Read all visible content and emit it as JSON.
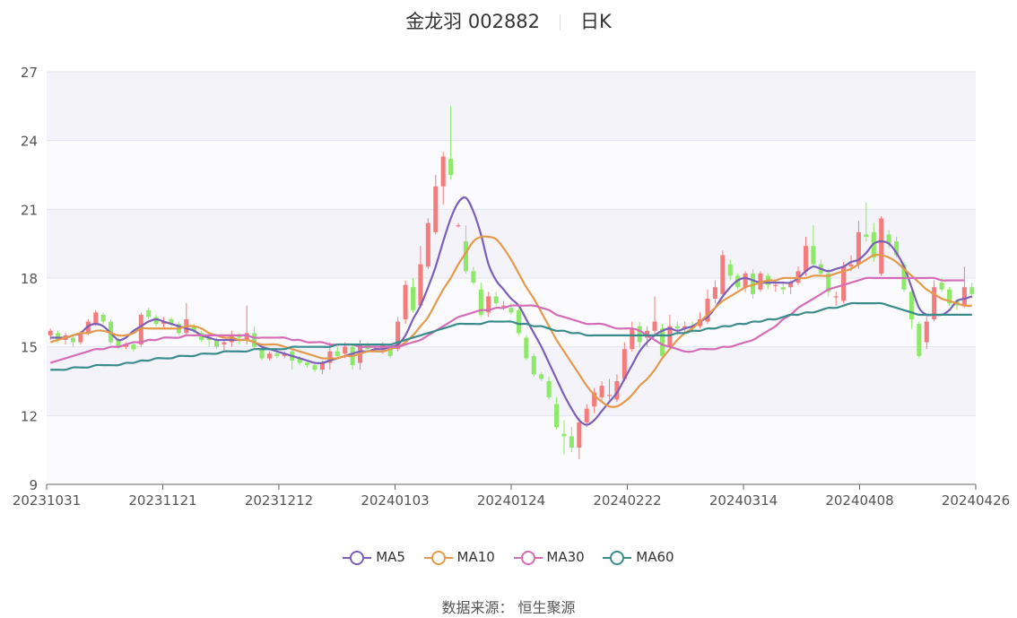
{
  "title": {
    "stock": "金龙羽 002882",
    "period": "日K"
  },
  "source": "数据来源： 恒生聚源",
  "colors": {
    "up": "#f47c7c",
    "down": "#8ee86a",
    "ma5": "#7b5fb8",
    "ma10": "#e49a4a",
    "ma30": "#d46cb8",
    "ma60": "#3a8c8c"
  },
  "chart_data": {
    "type": "candlestick",
    "ylim": [
      9,
      27
    ],
    "yticks": [
      9,
      12,
      15,
      18,
      21,
      24,
      27
    ],
    "xticks": [
      "20231031",
      "20231121",
      "20231212",
      "20240103",
      "20240124",
      "20240222",
      "20240314",
      "20240408",
      "20240426"
    ],
    "legend_position": "bottom",
    "candles": [
      [
        15.5,
        15.7,
        15.3,
        15.8
      ],
      [
        15.6,
        15.3,
        15.2,
        15.7
      ],
      [
        15.3,
        15.5,
        15.1,
        15.6
      ],
      [
        15.4,
        15.2,
        15.0,
        15.5
      ],
      [
        15.2,
        15.6,
        15.1,
        15.7
      ],
      [
        15.6,
        16.1,
        15.5,
        16.2
      ],
      [
        16.0,
        16.5,
        15.9,
        16.6
      ],
      [
        16.4,
        16.1,
        16.0,
        16.5
      ],
      [
        16.1,
        15.2,
        15.1,
        16.2
      ],
      [
        15.3,
        15.0,
        14.9,
        15.4
      ],
      [
        15.0,
        15.1,
        14.9,
        15.2
      ],
      [
        15.1,
        14.9,
        14.8,
        15.2
      ],
      [
        15.1,
        16.4,
        15.0,
        16.5
      ],
      [
        16.6,
        16.3,
        16.2,
        16.7
      ],
      [
        16.3,
        16.0,
        15.9,
        16.4
      ],
      [
        16.0,
        16.1,
        15.8,
        16.3
      ],
      [
        16.2,
        16.0,
        15.9,
        16.3
      ],
      [
        16.0,
        15.6,
        15.5,
        16.1
      ],
      [
        15.6,
        16.2,
        15.5,
        16.9
      ],
      [
        15.9,
        15.7,
        15.6,
        16.0
      ],
      [
        15.6,
        15.3,
        15.2,
        15.7
      ],
      [
        15.4,
        15.3,
        15.0,
        15.5
      ],
      [
        15.3,
        15.0,
        14.9,
        15.4
      ],
      [
        15.1,
        15.2,
        14.8,
        15.3
      ],
      [
        15.2,
        15.5,
        15.0,
        15.7
      ],
      [
        15.5,
        15.4,
        15.1,
        15.6
      ],
      [
        15.3,
        15.6,
        15.1,
        16.8
      ],
      [
        15.6,
        15.0,
        14.9,
        15.9
      ],
      [
        14.9,
        14.5,
        14.4,
        15.0
      ],
      [
        14.5,
        14.7,
        14.4,
        14.8
      ],
      [
        14.7,
        14.6,
        14.5,
        14.8
      ],
      [
        14.6,
        14.7,
        14.5,
        14.8
      ],
      [
        14.8,
        14.4,
        14.0,
        14.9
      ],
      [
        14.5,
        14.3,
        14.2,
        14.6
      ],
      [
        14.3,
        14.2,
        14.1,
        14.4
      ],
      [
        14.2,
        14.0,
        13.9,
        14.3
      ],
      [
        14.0,
        14.3,
        13.8,
        14.4
      ],
      [
        14.3,
        14.8,
        14.0,
        15.2
      ],
      [
        14.8,
        14.6,
        14.5,
        15.0
      ],
      [
        14.7,
        15.0,
        14.5,
        15.2
      ],
      [
        15.0,
        14.2,
        14.0,
        15.1
      ],
      [
        14.3,
        15.1,
        14.0,
        15.3
      ],
      [
        15.1,
        14.9,
        14.8,
        15.2
      ],
      [
        14.9,
        14.9,
        14.8,
        15.0
      ],
      [
        14.9,
        15.1,
        14.7,
        15.2
      ],
      [
        14.9,
        14.6,
        14.5,
        15.0
      ],
      [
        14.9,
        16.1,
        14.8,
        16.3
      ],
      [
        16.2,
        17.7,
        16.0,
        17.9
      ],
      [
        17.6,
        16.6,
        16.5,
        18.0
      ],
      [
        16.8,
        18.6,
        16.7,
        19.4
      ],
      [
        18.5,
        20.4,
        18.4,
        20.6
      ],
      [
        20.0,
        22.0,
        19.9,
        22.5
      ],
      [
        22.0,
        23.3,
        21.2,
        23.5
      ],
      [
        23.2,
        22.5,
        22.3,
        25.5
      ],
      [
        20.3,
        20.3,
        20.2,
        20.4
      ],
      [
        19.6,
        18.3,
        18.2,
        20.3
      ],
      [
        18.3,
        17.8,
        17.7,
        18.5
      ],
      [
        17.5,
        16.4,
        16.3,
        17.8
      ],
      [
        16.5,
        17.2,
        16.3,
        17.4
      ],
      [
        17.2,
        16.9,
        16.8,
        17.4
      ],
      [
        16.8,
        16.8,
        16.6,
        17.0
      ],
      [
        16.7,
        16.5,
        16.4,
        16.9
      ],
      [
        16.6,
        15.6,
        15.5,
        16.7
      ],
      [
        15.4,
        14.5,
        14.4,
        15.5
      ],
      [
        14.6,
        13.8,
        13.7,
        14.7
      ],
      [
        13.8,
        13.6,
        13.5,
        13.9
      ],
      [
        13.5,
        12.8,
        12.7,
        13.7
      ],
      [
        12.5,
        11.5,
        11.4,
        12.8
      ],
      [
        11.2,
        11.1,
        10.3,
        11.8
      ],
      [
        11.1,
        10.6,
        10.4,
        11.5
      ],
      [
        10.6,
        11.7,
        10.1,
        11.9
      ],
      [
        11.7,
        12.3,
        11.5,
        12.5
      ],
      [
        12.4,
        13.0,
        12.1,
        13.2
      ],
      [
        12.8,
        13.3,
        12.6,
        13.5
      ],
      [
        12.9,
        12.9,
        12.7,
        13.6
      ],
      [
        12.7,
        13.5,
        12.6,
        13.8
      ],
      [
        13.6,
        14.9,
        13.5,
        15.2
      ],
      [
        14.9,
        15.8,
        14.8,
        16.1
      ],
      [
        15.9,
        15.2,
        15.0,
        16.1
      ],
      [
        15.4,
        15.7,
        15.0,
        15.9
      ],
      [
        15.7,
        16.1,
        15.5,
        17.2
      ],
      [
        15.8,
        14.6,
        14.5,
        16.0
      ],
      [
        15.0,
        15.9,
        14.9,
        16.4
      ],
      [
        15.9,
        15.8,
        15.5,
        16.1
      ],
      [
        15.8,
        15.9,
        15.6,
        16.1
      ],
      [
        15.9,
        15.8,
        15.6,
        16.1
      ],
      [
        15.9,
        16.2,
        15.8,
        16.5
      ],
      [
        16.1,
        17.1,
        16.0,
        17.5
      ],
      [
        17.1,
        17.6,
        16.9,
        17.9
      ],
      [
        17.3,
        19.0,
        17.2,
        19.2
      ],
      [
        18.6,
        18.1,
        17.9,
        18.8
      ],
      [
        18.1,
        17.6,
        17.5,
        18.2
      ],
      [
        17.6,
        18.2,
        17.4,
        18.3
      ],
      [
        18.2,
        17.3,
        17.1,
        18.4
      ],
      [
        17.5,
        18.2,
        17.4,
        18.3
      ],
      [
        18.1,
        17.7,
        17.5,
        18.2
      ],
      [
        17.7,
        17.7,
        17.4,
        17.9
      ],
      [
        17.6,
        17.5,
        17.3,
        17.8
      ],
      [
        17.6,
        17.8,
        17.3,
        17.9
      ],
      [
        17.8,
        18.3,
        17.7,
        18.5
      ],
      [
        18.3,
        19.4,
        18.1,
        19.8
      ],
      [
        19.4,
        18.6,
        18.5,
        20.3
      ],
      [
        18.6,
        18.2,
        18.1,
        18.8
      ],
      [
        18.2,
        17.4,
        17.2,
        18.4
      ],
      [
        17.2,
        17.2,
        16.8,
        17.4
      ],
      [
        17.0,
        18.5,
        16.9,
        18.7
      ],
      [
        18.5,
        18.6,
        18.3,
        19.0
      ],
      [
        18.6,
        20.0,
        18.4,
        20.5
      ],
      [
        19.9,
        19.8,
        19.6,
        21.3
      ],
      [
        20.0,
        18.9,
        18.7,
        20.4
      ],
      [
        18.2,
        20.6,
        18.1,
        20.7
      ],
      [
        19.9,
        19.5,
        19.3,
        20.1
      ],
      [
        19.6,
        19.0,
        18.9,
        19.8
      ],
      [
        18.6,
        17.5,
        17.4,
        18.7
      ],
      [
        17.4,
        16.2,
        15.8,
        17.5
      ],
      [
        16.0,
        14.6,
        14.5,
        16.1
      ],
      [
        15.2,
        16.1,
        14.9,
        16.4
      ],
      [
        16.2,
        17.6,
        16.1,
        17.9
      ],
      [
        17.8,
        17.5,
        17.4,
        18.0
      ],
      [
        17.5,
        16.9,
        16.8,
        17.6
      ],
      [
        17.0,
        16.8,
        16.6,
        17.1
      ],
      [
        16.8,
        17.6,
        16.7,
        18.5
      ],
      [
        17.6,
        17.3,
        17.1,
        17.8
      ]
    ],
    "series": [
      {
        "name": "MA5",
        "values": [
          15.4,
          15.4,
          15.4,
          15.5,
          15.6,
          15.9,
          16.0,
          15.9,
          15.6,
          15.3,
          15.4,
          15.7,
          15.9,
          16.1,
          16.2,
          16.1,
          16.0,
          15.9,
          15.8,
          15.7,
          15.5,
          15.4,
          15.3,
          15.3,
          15.3,
          15.3,
          15.3,
          15.2,
          15.0,
          14.9,
          14.8,
          14.7,
          14.6,
          14.5,
          14.4,
          14.3,
          14.3,
          14.4,
          14.5,
          14.6,
          14.7,
          14.8,
          14.8,
          14.9,
          14.9,
          15.0,
          15.1,
          15.5,
          16.2,
          16.8,
          17.6,
          18.5,
          19.6,
          20.6,
          21.3,
          21.5,
          20.9,
          19.9,
          18.6,
          17.9,
          17.5,
          17.1,
          16.8,
          16.2,
          15.6,
          15.0,
          14.3,
          13.6,
          12.9,
          12.3,
          11.8,
          11.6,
          11.8,
          12.2,
          12.6,
          13.0,
          13.6,
          14.2,
          14.8,
          15.2,
          15.5,
          15.7,
          15.8,
          15.7,
          15.8,
          15.9,
          16.1,
          16.3,
          16.7,
          17.2,
          17.6,
          17.9,
          18.0,
          17.9,
          17.8,
          17.8,
          17.8,
          17.8,
          17.8,
          18.0,
          18.3,
          18.5,
          18.4,
          18.3,
          18.4,
          18.5,
          18.7,
          18.8,
          19.1,
          19.5,
          19.6,
          19.5,
          19.1,
          18.5,
          17.6,
          16.7,
          16.4,
          16.4,
          16.4,
          16.6,
          17.0,
          17.1,
          17.2
        ]
      },
      {
        "name": "MA10",
        "values": [
          15.2,
          15.3,
          15.4,
          15.5,
          15.6,
          15.6,
          15.7,
          15.7,
          15.6,
          15.5,
          15.5,
          15.6,
          15.8,
          15.8,
          15.8,
          15.8,
          15.8,
          15.8,
          15.9,
          15.9,
          15.8,
          15.6,
          15.5,
          15.4,
          15.4,
          15.3,
          15.3,
          15.2,
          15.1,
          15.1,
          15.1,
          15.0,
          14.9,
          14.8,
          14.7,
          14.6,
          14.5,
          14.5,
          14.5,
          14.6,
          14.6,
          14.7,
          14.8,
          14.8,
          14.8,
          14.9,
          15.0,
          15.2,
          15.5,
          15.9,
          16.3,
          16.9,
          17.5,
          18.0,
          18.6,
          19.1,
          19.6,
          19.8,
          19.8,
          19.7,
          19.3,
          18.8,
          18.2,
          17.6,
          17.1,
          16.5,
          15.9,
          15.3,
          14.8,
          14.3,
          13.8,
          13.3,
          12.9,
          12.6,
          12.4,
          12.4,
          12.6,
          12.9,
          13.3,
          13.6,
          14.0,
          14.5,
          14.9,
          15.3,
          15.6,
          15.8,
          16.1,
          16.4,
          16.7,
          17.0,
          17.2,
          17.4,
          17.6,
          17.7,
          17.8,
          17.9,
          17.9,
          18.0,
          18.0,
          18.0,
          18.0,
          18.1,
          18.1,
          18.1,
          18.2,
          18.3,
          18.4,
          18.6,
          18.8,
          19.0,
          19.0,
          18.9,
          18.7,
          18.4,
          18.1,
          17.8,
          17.5,
          17.3,
          17.1,
          17.0,
          16.9,
          16.8,
          16.8
        ]
      },
      {
        "name": "MA30",
        "values": [
          14.3,
          14.4,
          14.5,
          14.6,
          14.7,
          14.8,
          14.9,
          14.9,
          15.0,
          15.0,
          15.1,
          15.2,
          15.2,
          15.3,
          15.3,
          15.4,
          15.4,
          15.4,
          15.5,
          15.5,
          15.5,
          15.5,
          15.5,
          15.5,
          15.5,
          15.5,
          15.5,
          15.4,
          15.4,
          15.4,
          15.4,
          15.4,
          15.3,
          15.3,
          15.2,
          15.2,
          15.2,
          15.1,
          15.1,
          15.1,
          15.1,
          15.0,
          15.0,
          15.0,
          15.0,
          15.0,
          15.0,
          15.1,
          15.2,
          15.3,
          15.5,
          15.7,
          15.9,
          16.1,
          16.3,
          16.4,
          16.5,
          16.6,
          16.6,
          16.7,
          16.7,
          16.8,
          16.8,
          16.8,
          16.8,
          16.7,
          16.6,
          16.4,
          16.3,
          16.2,
          16.1,
          16.0,
          16.0,
          16.0,
          15.9,
          15.8,
          15.8,
          15.8,
          15.7,
          15.5,
          15.3,
          15.1,
          15.0,
          14.9,
          14.8,
          14.8,
          14.9,
          14.9,
          14.9,
          15.0,
          15.0,
          15.1,
          15.2,
          15.3,
          15.5,
          15.7,
          15.9,
          16.2,
          16.4,
          16.7,
          16.9,
          17.1,
          17.3,
          17.5,
          17.6,
          17.7,
          17.8,
          17.9,
          18.0,
          18.0,
          18.0,
          18.0,
          18.0,
          18.0,
          18.0,
          18.0,
          18.0,
          18.0,
          17.9,
          17.9,
          17.9,
          17.9
        ]
      },
      {
        "name": "MA60",
        "values": [
          14.0,
          14.0,
          14.0,
          14.1,
          14.1,
          14.1,
          14.2,
          14.2,
          14.2,
          14.2,
          14.3,
          14.3,
          14.4,
          14.4,
          14.5,
          14.5,
          14.5,
          14.6,
          14.6,
          14.6,
          14.7,
          14.7,
          14.7,
          14.8,
          14.8,
          14.8,
          14.8,
          14.9,
          14.9,
          14.9,
          14.9,
          14.9,
          15.0,
          15.0,
          15.0,
          15.0,
          15.0,
          15.0,
          15.1,
          15.1,
          15.1,
          15.1,
          15.1,
          15.1,
          15.1,
          15.1,
          15.2,
          15.3,
          15.4,
          15.5,
          15.6,
          15.7,
          15.8,
          15.9,
          16.0,
          16.0,
          16.0,
          16.0,
          16.1,
          16.1,
          16.1,
          16.1,
          16.0,
          16.0,
          15.9,
          15.9,
          15.8,
          15.7,
          15.7,
          15.6,
          15.6,
          15.5,
          15.5,
          15.5,
          15.5,
          15.5,
          15.5,
          15.5,
          15.5,
          15.5,
          15.5,
          15.5,
          15.5,
          15.6,
          15.6,
          15.7,
          15.7,
          15.8,
          15.8,
          15.9,
          15.9,
          16.0,
          16.0,
          16.1,
          16.1,
          16.2,
          16.2,
          16.3,
          16.4,
          16.4,
          16.5,
          16.5,
          16.6,
          16.7,
          16.7,
          16.8,
          16.9,
          16.9,
          16.9,
          16.9,
          16.9,
          16.8,
          16.7,
          16.6,
          16.5,
          16.4,
          16.4,
          16.4,
          16.4,
          16.4,
          16.4,
          16.4,
          16.4
        ]
      }
    ]
  }
}
